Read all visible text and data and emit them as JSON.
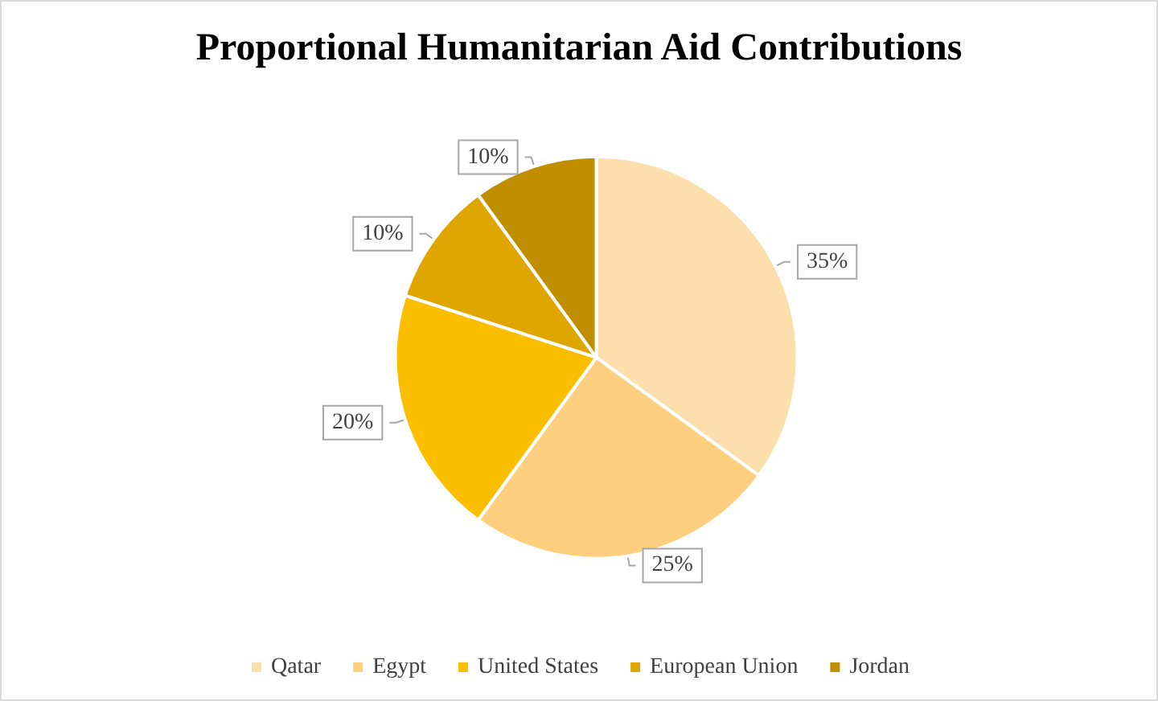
{
  "chart_data": {
    "type": "pie",
    "title": "Proportional Humanitarian Aid Contributions",
    "categories": [
      "Qatar",
      "Egypt",
      "United States",
      "European Union",
      "Jordan"
    ],
    "values": [
      35,
      25,
      20,
      10,
      10
    ],
    "colors": [
      "#fddfae",
      "#fdcf7f",
      "#fcbf00",
      "#e0a600",
      "#c08f00"
    ],
    "value_labels": [
      "35%",
      "25%",
      "20%",
      "10%",
      "10%"
    ],
    "legend": "bottom"
  }
}
